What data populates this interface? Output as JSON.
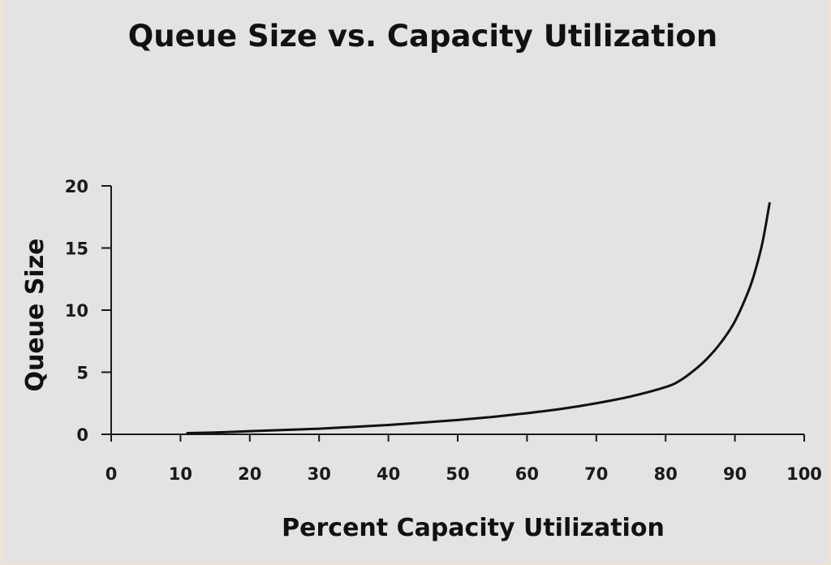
{
  "chart_data": {
    "type": "line",
    "title": "Queue Size vs. Capacity Utilization",
    "xlabel": "Percent Capacity Utilization",
    "ylabel": "Queue Size",
    "xlim": [
      0,
      100
    ],
    "ylim": [
      0,
      20
    ],
    "xticks": [
      0,
      10,
      20,
      30,
      40,
      50,
      60,
      70,
      80,
      90,
      100
    ],
    "yticks": [
      0,
      5,
      10,
      15,
      20
    ],
    "grid": false,
    "legend": "none",
    "line_color": "#111111",
    "series": [
      {
        "x": [
          11,
          15,
          20,
          25,
          30,
          35,
          40,
          45,
          50,
          55,
          60,
          65,
          70,
          75,
          80,
          82,
          84,
          86,
          88,
          90,
          92,
          93,
          94,
          95
        ],
        "y": [
          0.1,
          0.15,
          0.25,
          0.35,
          0.45,
          0.6,
          0.75,
          0.95,
          1.15,
          1.4,
          1.7,
          2.05,
          2.5,
          3.05,
          3.8,
          4.3,
          5.1,
          6.1,
          7.4,
          9.1,
          11.6,
          13.3,
          15.5,
          18.6
        ]
      }
    ]
  }
}
